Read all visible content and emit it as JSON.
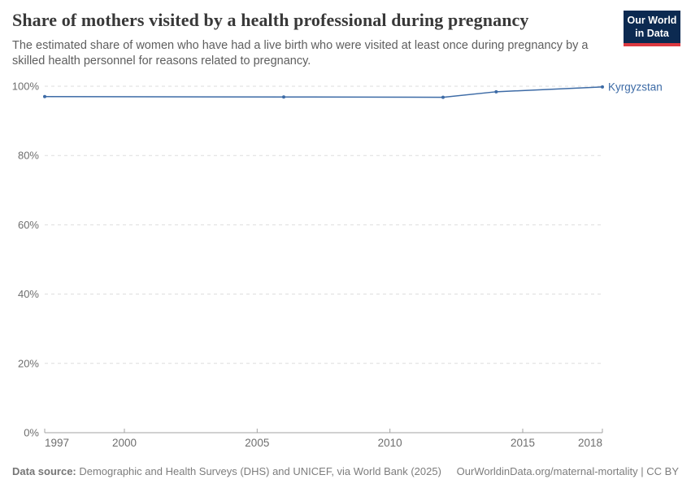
{
  "header": {
    "title": "Share of mothers visited by a health professional during pregnancy",
    "subtitle": "The estimated share of women who have had a live birth who were visited at least once during pregnancy by a skilled health personnel for reasons related to pregnancy.",
    "logo_line1": "Our World",
    "logo_line2": "in Data",
    "logo_bg_color": "#0c2a51",
    "logo_stripe_color": "#dc3940"
  },
  "chart_data": {
    "type": "line",
    "title": "Share of mothers visited by a health professional during pregnancy",
    "xlabel": "",
    "ylabel": "",
    "xlim": [
      1997,
      2018
    ],
    "ylim": [
      0,
      100
    ],
    "x_ticks": [
      1997,
      2000,
      2005,
      2010,
      2015,
      2018
    ],
    "y_ticks": [
      0,
      20,
      40,
      60,
      80,
      100
    ],
    "y_tick_suffix": "%",
    "grid": true,
    "legend_position": "end-of-line-label",
    "series": [
      {
        "name": "Kyrgyzstan",
        "color": "#3d6ba6",
        "x": [
          1997,
          2006,
          2012,
          2014,
          2018
        ],
        "values": [
          97.0,
          96.9,
          96.8,
          98.4,
          99.8
        ]
      }
    ]
  },
  "colors": {
    "grid_line": "#dddddd",
    "axis_line": "#a3a3a3",
    "tick_text": "#6e6e6e"
  },
  "footer": {
    "source_label": "Data source:",
    "source_text": " Demographic and Health Surveys (DHS) and UNICEF, via World Bank (2025)",
    "credit": "OurWorldinData.org/maternal-mortality | CC BY"
  }
}
